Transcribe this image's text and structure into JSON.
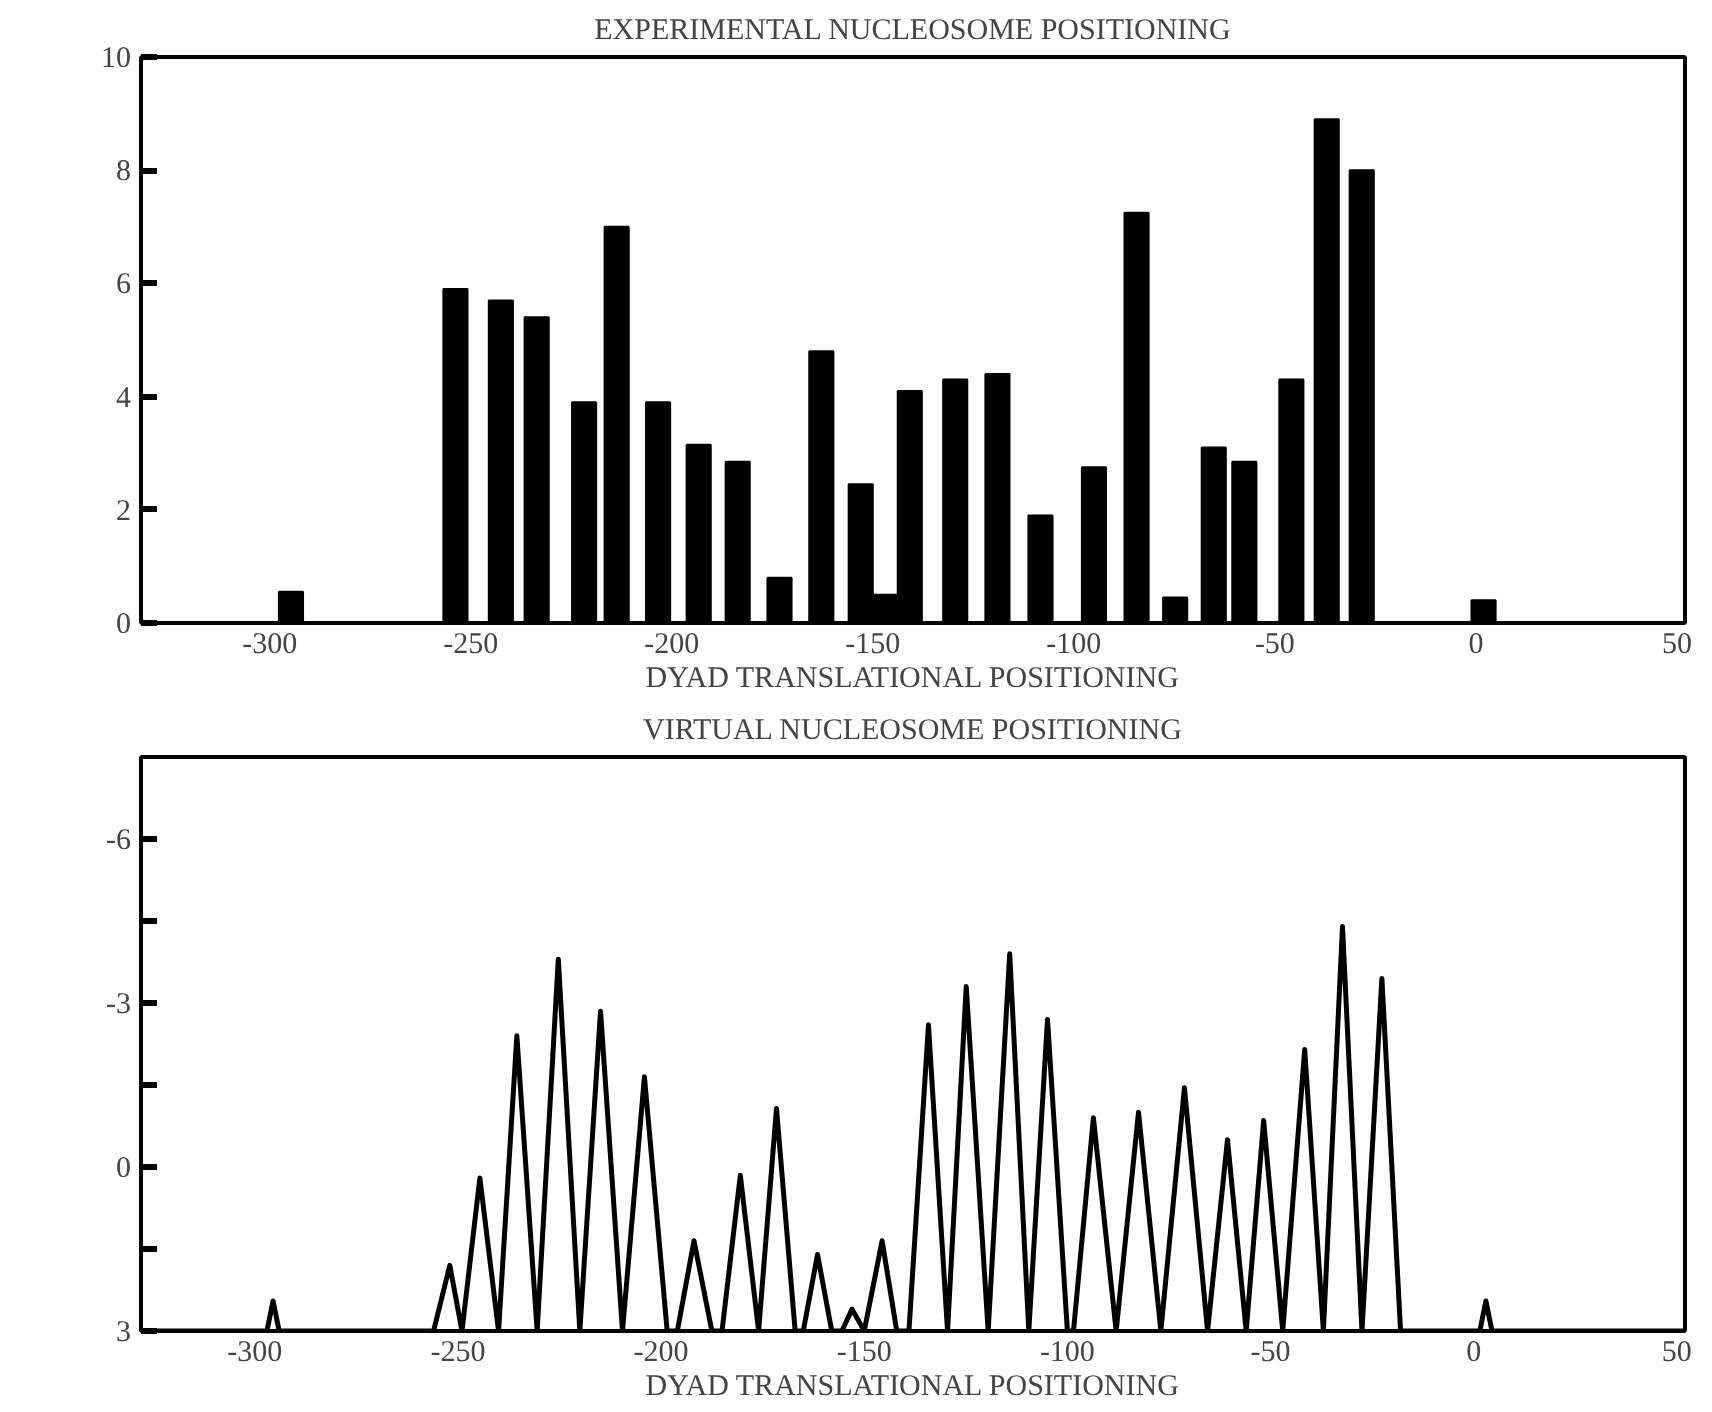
{
  "chart_data": [
    {
      "type": "bar",
      "title": "EXPERIMENTAL NUCLEOSOME POSITIONING",
      "xlabel": "DYAD TRANSLATIONAL POSITIONING",
      "color": "#000000",
      "x": [
        -294.7,
        -253.8,
        -242.5,
        -233.6,
        -221.8,
        -213.7,
        -203.4,
        -193.3,
        -183.6,
        -173.2,
        -162.8,
        -153,
        -147,
        -140.8,
        -129.5,
        -119,
        -108.3,
        -95,
        -84.4,
        -74.8,
        -65.2,
        -57.6,
        -45.9,
        -37.1,
        -28.4,
        1.9
      ],
      "values": [
        0.55,
        5.9,
        5.7,
        5.4,
        3.9,
        7.0,
        3.9,
        3.15,
        2.85,
        0.8,
        4.8,
        2.45,
        0.5,
        4.1,
        4.3,
        4.4,
        1.9,
        2.75,
        7.25,
        0.45,
        3.1,
        2.85,
        4.3,
        8.9,
        8.0,
        0.4
      ],
      "xlim": [
        -332,
        52
      ],
      "ylim": [
        0,
        10
      ],
      "xticks": [
        -300,
        -250,
        -200,
        -150,
        -100,
        -50,
        0,
        50
      ],
      "yticks": [
        0,
        2,
        4,
        6,
        8,
        10
      ],
      "grid": false
    },
    {
      "type": "line",
      "title": "VIRTUAL NUCLEOSOME POSITIONING",
      "xlabel": "DYAD TRANSLATIONAL POSITIONING",
      "color": "#000000",
      "line_style": "solid",
      "x": [
        -328,
        -297,
        -295.5,
        -294,
        -256,
        -252,
        -249,
        -244.6,
        -240,
        -235.5,
        -230.5,
        -225.3,
        -220,
        -214.9,
        -209.5,
        -204.1,
        -198.5,
        -196,
        -191.9,
        -187.5,
        -185,
        -180.5,
        -176,
        -171.6,
        -167,
        -165,
        -161.5,
        -158,
        -155.5,
        -153,
        -150,
        -145.6,
        -142,
        -139,
        -134.2,
        -129.5,
        -124.9,
        -119.5,
        -114.2,
        -109.5,
        -104.9,
        -100,
        -98.5,
        -93.6,
        -88,
        -82.5,
        -77,
        -71.2,
        -65.5,
        -60.6,
        -56,
        -51.7,
        -47,
        -41.6,
        -37,
        -32.3,
        -27.5,
        -22.6,
        -18,
        1.5,
        3,
        4.5,
        52
      ],
      "values": [
        3,
        3,
        2.45,
        3,
        3,
        1.8,
        3,
        0.2,
        3,
        -2.4,
        3,
        -3.8,
        3,
        -2.85,
        3,
        -1.65,
        3,
        3,
        1.35,
        3,
        3,
        0.15,
        3,
        -1.07,
        3,
        3,
        1.6,
        3,
        3,
        2.6,
        3,
        1.35,
        3,
        3,
        -2.6,
        3,
        -3.3,
        3,
        -3.9,
        3,
        -2.7,
        3,
        3,
        -0.9,
        3,
        -1.0,
        3,
        -1.45,
        3,
        -0.5,
        3,
        -0.85,
        3,
        -2.15,
        3,
        -4.4,
        3,
        -3.45,
        3,
        3,
        2.45,
        3,
        3
      ],
      "xlim": [
        -328,
        52
      ],
      "ylim": [
        3,
        -7.5
      ],
      "xticks": [
        -300,
        -250,
        -200,
        -150,
        -100,
        -50,
        0,
        50
      ],
      "yticks": [
        3,
        {
          "value": 1.5,
          "label": null
        },
        0,
        {
          "value": -1.5,
          "label": null
        },
        -3,
        {
          "value": -4.5,
          "label": null
        },
        -6
      ],
      "grid": false
    }
  ]
}
